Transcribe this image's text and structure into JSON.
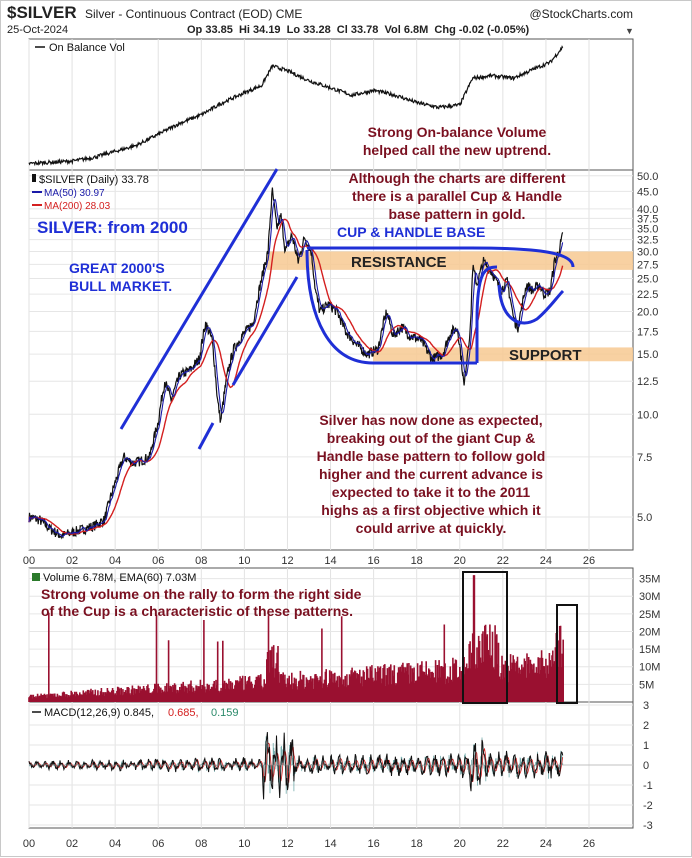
{
  "header": {
    "symbol": "$SILVER",
    "subtitle": "Silver - Continuous Contract (EOD) CME",
    "brand": "@StockCharts.com",
    "date": "25-Oct-2024",
    "quote": "Op 33.85  Hi 34.19  Lo 33.28  Cl 33.78  Vol 6.8M  Chg -0.02 (-0.05%)"
  },
  "panels": {
    "obv_legend": "On Balance Vol",
    "price_legend": "$SILVER (Daily) 33.78",
    "ma50_legend": "MA(50) 30.97",
    "ma200_legend": "MA(200) 28.03",
    "volume_legend": "Volume 6.78M, EMA(60) 7.03M",
    "macd_legend_a": "MACD(12,26,9) 0.845,",
    "macd_legend_b": "0.685,",
    "macd_legend_c": "0.159"
  },
  "annotations": {
    "obv_note_1": "Strong On-balance Volume",
    "obv_note_2": "helped call the new uptrend.",
    "gold_note_1": "Although the charts are different",
    "gold_note_2": "there is a parallel Cup & Handle",
    "gold_note_3": "base pattern in gold.",
    "silver_from": "SILVER: from 2000",
    "bull_1": "GREAT  2000'S",
    "bull_2": "BULL MARKET.",
    "cup_handle": "CUP & HANDLE BASE",
    "resistance": "RESISTANCE",
    "support": "SUPPORT",
    "body_1": "Silver has now done as expected,",
    "body_2": "breaking out of the giant Cup &",
    "body_3": "Handle base pattern to follow gold",
    "body_4": "higher and the current advance is",
    "body_5": "expected to take it to the 2011",
    "body_6": "highs as a first objective which it",
    "body_7": "could arrive at quickly.",
    "vol_note_1": "Strong volume on the rally to form the right side",
    "vol_note_2": "of the Cup is a characteristic of these patterns."
  },
  "colors": {
    "price": "#111111",
    "ma50": "#1a1aa8",
    "ma200": "#d42020",
    "volume": "#9a1030",
    "annotation_blue": "#1f2fd6",
    "annotation_maroon": "#7a1020",
    "band": "#f7c992",
    "macd_hist": "#3a8a8a"
  },
  "chart_data": {
    "type": "line",
    "x_ticks": [
      "00",
      "02",
      "04",
      "06",
      "08",
      "10",
      "12",
      "14",
      "16",
      "18",
      "20",
      "22",
      "24",
      "26"
    ],
    "price_axis_scale": "log",
    "price_ticks": [
      "50.0",
      "45.0",
      "40.0",
      "37.5",
      "35.0",
      "32.5",
      "30.0",
      "27.5",
      "25.0",
      "22.5",
      "20.0",
      "17.5",
      "15.0",
      "12.5",
      "10.0",
      "7.5",
      "5.0"
    ],
    "volume_ticks": [
      "35M",
      "30M",
      "25M",
      "20M",
      "15M",
      "10M",
      "5M"
    ],
    "macd_ticks": [
      "3",
      "2",
      "1",
      "0",
      "-1",
      "-2",
      "-3"
    ],
    "last_close": 33.78,
    "ma50_last": 30.97,
    "ma200_last": 28.03,
    "resistance_range": [
      26.5,
      30.0
    ],
    "support_range": [
      14.3,
      15.7
    ],
    "price_series": [
      [
        2000.0,
        5.0
      ],
      [
        2000.5,
        4.9
      ],
      [
        2001.0,
        4.6
      ],
      [
        2001.5,
        4.4
      ],
      [
        2002.0,
        4.5
      ],
      [
        2002.5,
        4.6
      ],
      [
        2003.0,
        4.7
      ],
      [
        2003.5,
        4.9
      ],
      [
        2004.0,
        6.3
      ],
      [
        2004.4,
        7.5
      ],
      [
        2004.8,
        7.2
      ],
      [
        2005.2,
        7.3
      ],
      [
        2005.6,
        7.5
      ],
      [
        2006.0,
        9.5
      ],
      [
        2006.3,
        12.5
      ],
      [
        2006.6,
        11.0
      ],
      [
        2007.0,
        13.0
      ],
      [
        2007.5,
        13.5
      ],
      [
        2007.9,
        14.5
      ],
      [
        2008.2,
        18.5
      ],
      [
        2008.5,
        16.5
      ],
      [
        2008.75,
        11.0
      ],
      [
        2008.9,
        9.5
      ],
      [
        2009.2,
        13.0
      ],
      [
        2009.5,
        15.5
      ],
      [
        2009.9,
        17.0
      ],
      [
        2010.4,
        18.5
      ],
      [
        2010.8,
        25.0
      ],
      [
        2011.1,
        30.0
      ],
      [
        2011.3,
        45.0
      ],
      [
        2011.5,
        35.0
      ],
      [
        2011.7,
        38.0
      ],
      [
        2011.9,
        30.0
      ],
      [
        2012.2,
        33.5
      ],
      [
        2012.5,
        28.0
      ],
      [
        2012.8,
        33.0
      ],
      [
        2013.1,
        30.0
      ],
      [
        2013.3,
        23.0
      ],
      [
        2013.5,
        20.0
      ],
      [
        2013.9,
        21.0
      ],
      [
        2014.3,
        20.0
      ],
      [
        2014.7,
        17.5
      ],
      [
        2015.2,
        16.0
      ],
      [
        2015.7,
        15.0
      ],
      [
        2016.2,
        15.5
      ],
      [
        2016.6,
        20.0
      ],
      [
        2016.9,
        17.0
      ],
      [
        2017.3,
        18.0
      ],
      [
        2017.7,
        17.0
      ],
      [
        2018.2,
        16.5
      ],
      [
        2018.7,
        14.5
      ],
      [
        2019.2,
        15.0
      ],
      [
        2019.6,
        17.5
      ],
      [
        2019.9,
        17.8
      ],
      [
        2020.2,
        12.0
      ],
      [
        2020.5,
        18.0
      ],
      [
        2020.6,
        27.0
      ],
      [
        2020.8,
        24.0
      ],
      [
        2021.1,
        28.0
      ],
      [
        2021.5,
        26.0
      ],
      [
        2021.9,
        23.0
      ],
      [
        2022.2,
        24.5
      ],
      [
        2022.5,
        19.0
      ],
      [
        2022.7,
        18.0
      ],
      [
        2022.9,
        21.0
      ],
      [
        2023.1,
        24.0
      ],
      [
        2023.4,
        23.0
      ],
      [
        2023.7,
        24.0
      ],
      [
        2023.9,
        22.5
      ],
      [
        2024.2,
        23.0
      ],
      [
        2024.4,
        28.0
      ],
      [
        2024.6,
        30.0
      ],
      [
        2024.8,
        33.8
      ]
    ],
    "obv_series": [
      [
        2000.0,
        0.02
      ],
      [
        2001.0,
        0.03
      ],
      [
        2002.0,
        0.04
      ],
      [
        2003.0,
        0.07
      ],
      [
        2004.0,
        0.12
      ],
      [
        2005.0,
        0.17
      ],
      [
        2006.0,
        0.26
      ],
      [
        2007.0,
        0.35
      ],
      [
        2008.0,
        0.42
      ],
      [
        2009.0,
        0.52
      ],
      [
        2010.0,
        0.6
      ],
      [
        2010.8,
        0.66
      ],
      [
        2011.3,
        0.82
      ],
      [
        2012.0,
        0.78
      ],
      [
        2013.0,
        0.7
      ],
      [
        2014.0,
        0.64
      ],
      [
        2015.0,
        0.58
      ],
      [
        2016.0,
        0.62
      ],
      [
        2017.0,
        0.58
      ],
      [
        2018.0,
        0.52
      ],
      [
        2019.0,
        0.48
      ],
      [
        2020.0,
        0.5
      ],
      [
        2020.6,
        0.72
      ],
      [
        2021.5,
        0.74
      ],
      [
        2022.5,
        0.72
      ],
      [
        2023.5,
        0.8
      ],
      [
        2024.2,
        0.85
      ],
      [
        2024.8,
        0.98
      ]
    ]
  }
}
